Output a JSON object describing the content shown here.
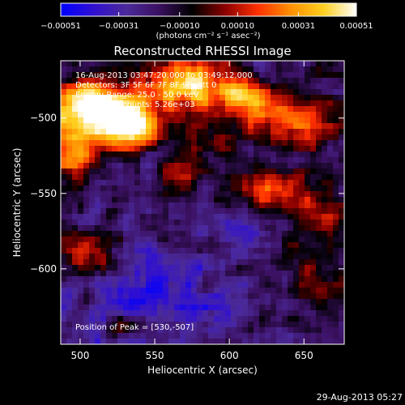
{
  "chart_data": {
    "type": "heatmap",
    "title": "Reconstructed RHESSI Image",
    "xlabel": "Heliocentric X (arcsec)",
    "ylabel": "Heliocentric Y (arcsec)",
    "xlim": [
      487,
      677
    ],
    "ylim": [
      -650,
      -462
    ],
    "x_ticks": [
      500,
      550,
      600,
      650
    ],
    "y_ticks": [
      -500,
      -550,
      -600
    ],
    "x_tick_labels": [
      "500",
      "550",
      "600",
      "650"
    ],
    "y_tick_labels": [
      "−500",
      "−550",
      "−600"
    ],
    "colorbar": {
      "range": [
        -0.00051,
        0.00051
      ],
      "ticks": [
        -0.00051,
        -0.00031,
        -0.0001,
        0.0001,
        0.00031,
        0.00051
      ],
      "tick_labels": [
        "−0.00051",
        "−0.00031",
        "−0.00010",
        "0.00010",
        "0.00031",
        "0.00051"
      ],
      "unit_label": "(photons cm⁻² s⁻¹ asec⁻²)",
      "colormap": [
        "#0000ff",
        "#3010d0",
        "#4b2a9a",
        "#3a1060",
        "#000000",
        "#8a0000",
        "#ff3000",
        "#ff9000",
        "#ffd020",
        "#ffffff"
      ]
    },
    "annotations": [
      "16-Aug-2013 03:47:20.000 to 03:49:12.000",
      "Detectors: 3F 5F 6F 7F 8F 9F, Att 0",
      "Energy Range: 25.0 - 50.0 keV",
      "Clean    Total counts: 5.26e+03"
    ],
    "peak_label": "Position of Peak = [530,-507]",
    "peak": {
      "x": 530,
      "y": -507
    },
    "emission_regions": [
      {
        "x": 510,
        "y": -495,
        "sx": 22,
        "sy": 14,
        "amp": 1.0
      },
      {
        "x": 535,
        "y": -505,
        "sx": 14,
        "sy": 10,
        "amp": 0.8
      },
      {
        "x": 575,
        "y": -478,
        "sx": 20,
        "sy": 12,
        "amp": 0.75
      },
      {
        "x": 615,
        "y": -488,
        "sx": 14,
        "sy": 9,
        "amp": 0.65
      },
      {
        "x": 645,
        "y": -505,
        "sx": 18,
        "sy": 11,
        "amp": 0.55
      },
      {
        "x": 495,
        "y": -525,
        "sx": 12,
        "sy": 9,
        "amp": 0.6
      },
      {
        "x": 625,
        "y": -545,
        "sx": 12,
        "sy": 9,
        "amp": 0.45
      },
      {
        "x": 655,
        "y": -560,
        "sx": 14,
        "sy": 14,
        "amp": 0.35
      },
      {
        "x": 505,
        "y": -590,
        "sx": 12,
        "sy": 10,
        "amp": 0.45
      },
      {
        "x": 565,
        "y": -540,
        "sx": 10,
        "sy": 7,
        "amp": 0.35
      },
      {
        "x": 525,
        "y": -640,
        "sx": 7,
        "sy": 6,
        "amp": 0.5
      },
      {
        "x": 660,
        "y": -610,
        "sx": 14,
        "sy": 10,
        "amp": 0.35
      },
      {
        "x": 590,
        "y": -515,
        "sx": 10,
        "sy": 8,
        "amp": 0.3
      }
    ],
    "negative_regions": [
      {
        "x": 545,
        "y": -610,
        "sx": 22,
        "sy": 18,
        "amp": 0.45
      },
      {
        "x": 520,
        "y": -640,
        "sx": 14,
        "sy": 10,
        "amp": 0.4
      },
      {
        "x": 590,
        "y": -625,
        "sx": 20,
        "sy": 12,
        "amp": 0.3
      },
      {
        "x": 610,
        "y": -580,
        "sx": 12,
        "sy": 10,
        "amp": 0.3
      }
    ]
  },
  "footer": {
    "timestamp": "29-Aug-2013 05:27"
  }
}
